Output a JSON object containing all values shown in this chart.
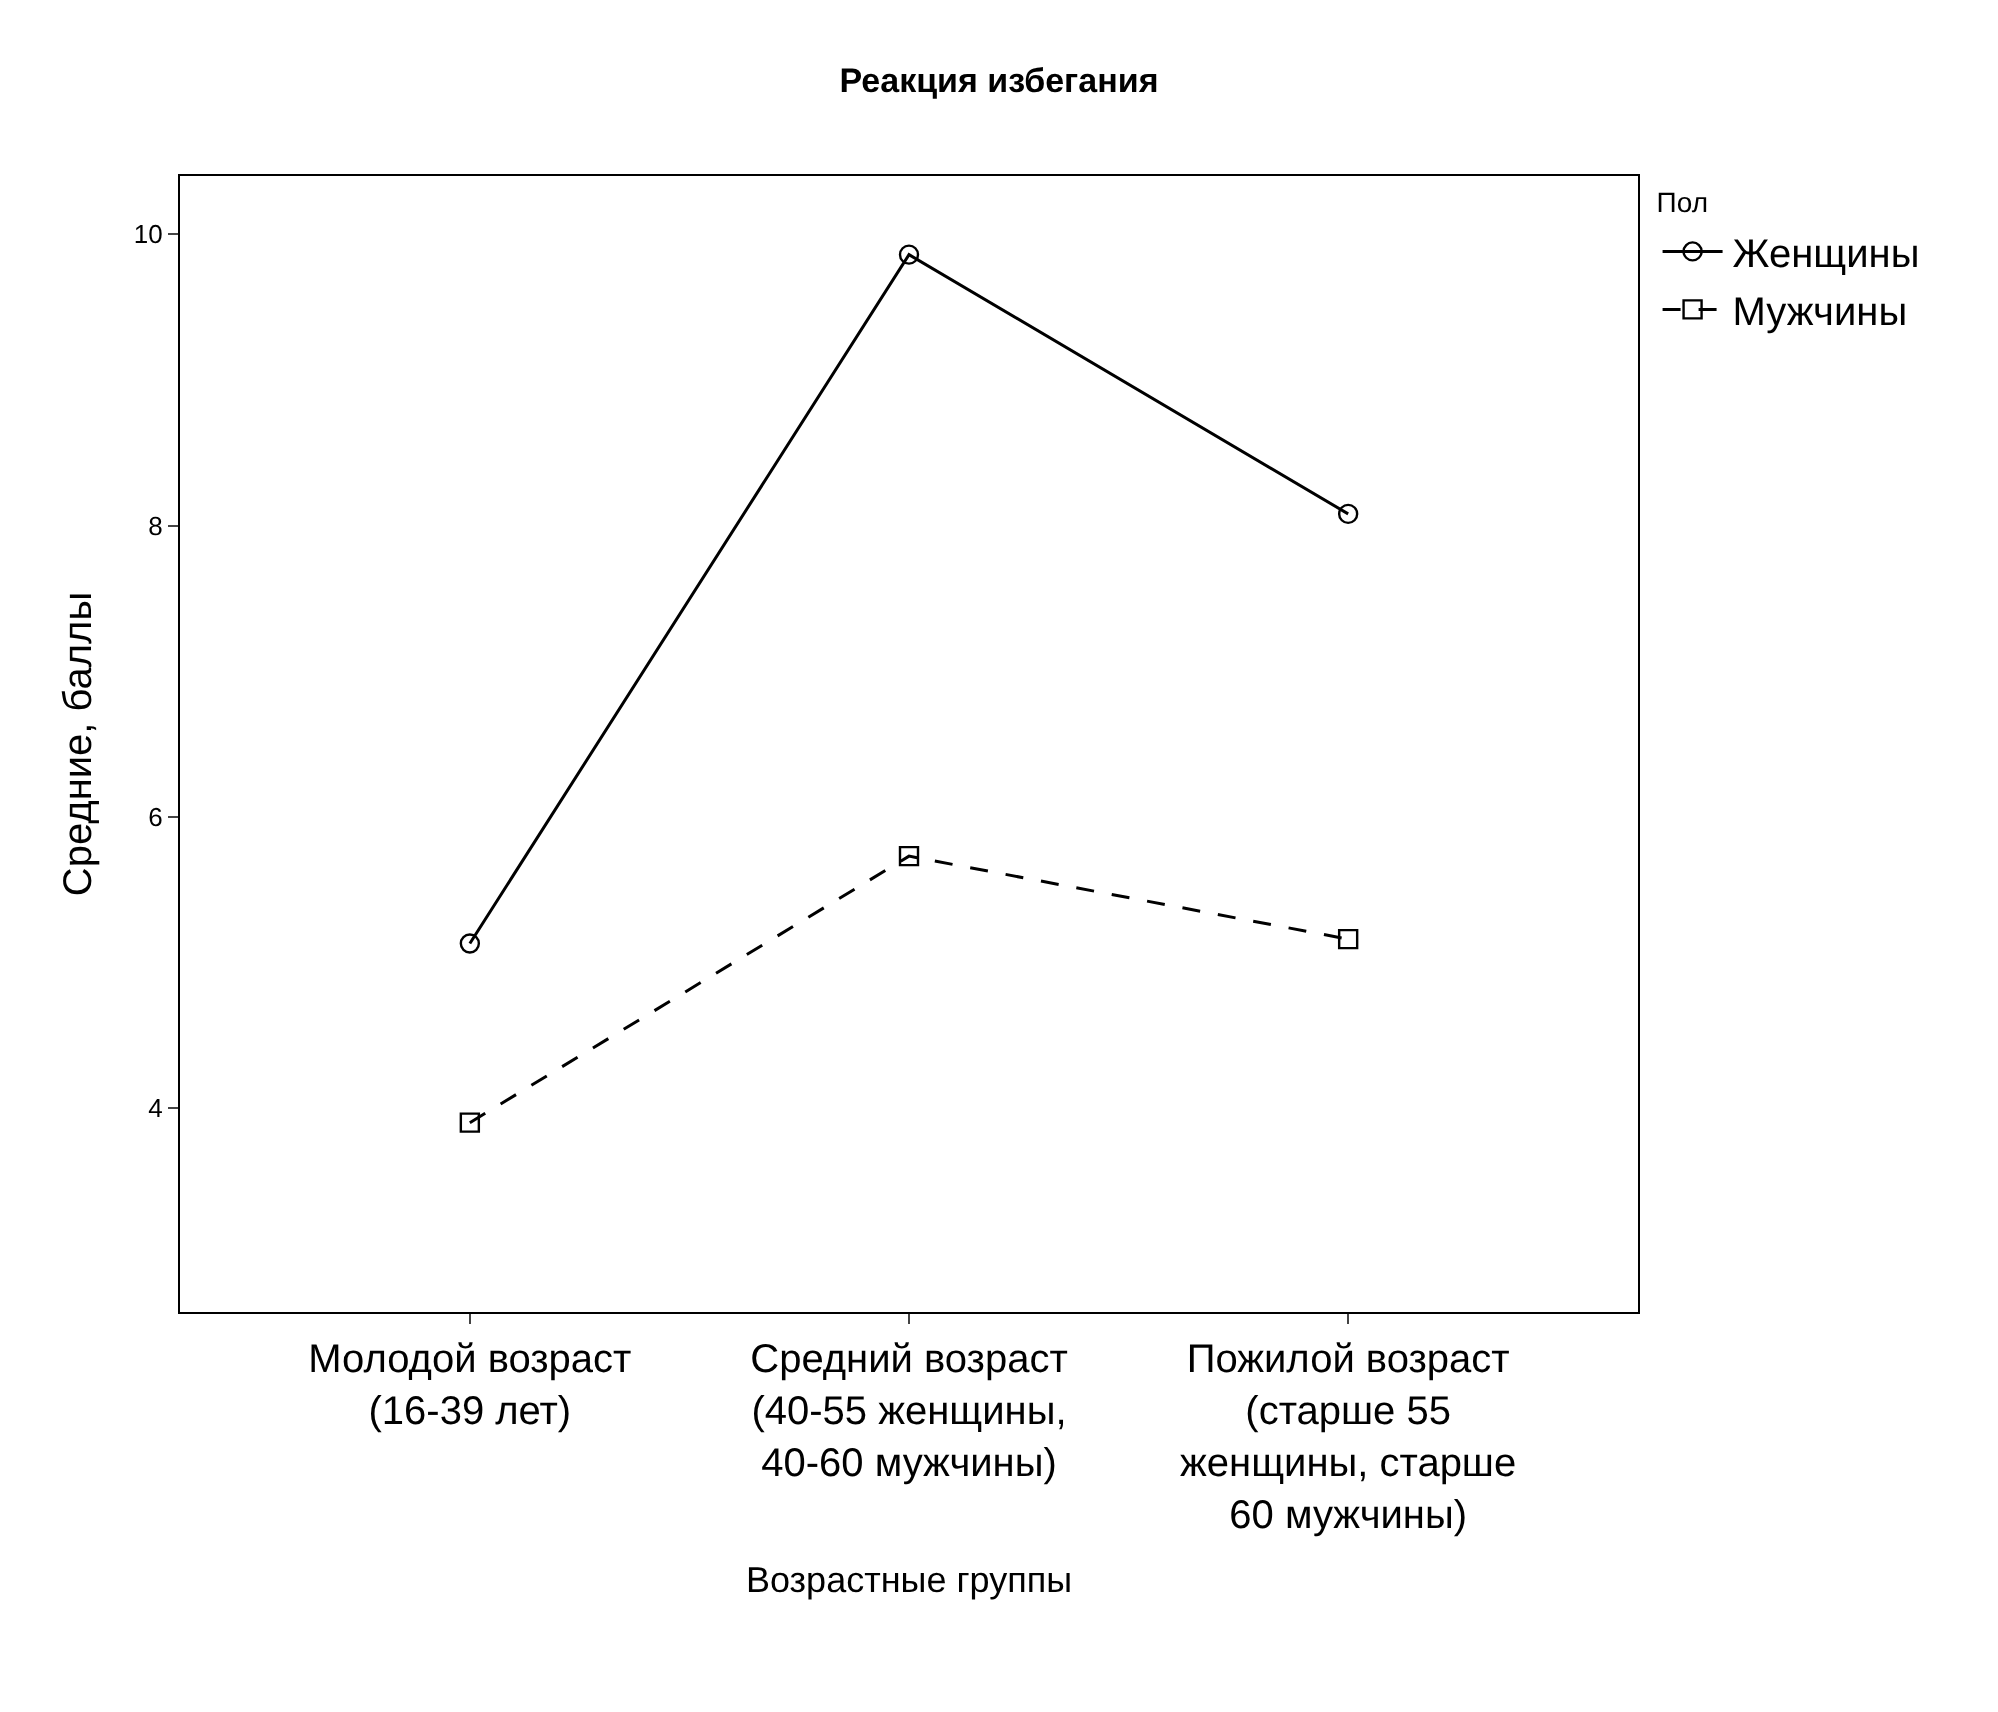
{
  "chart_data": {
    "type": "line",
    "title": "Реакция избегания",
    "xlabel": "Возрастные группы",
    "ylabel": "Средние, баллы",
    "legend_title": "Пол",
    "categories": [
      "Молодой возраст (16-39 лет)",
      "Средний возраст (40-55 женщины, 40-60 мужчины)",
      "Пожилой возраст (старше 55 женщины, старше 60 мужчины)"
    ],
    "series": [
      {
        "name": "Женщины",
        "color": "#000000",
        "values": [
          5.13,
          9.86,
          8.08
        ],
        "marker": "circle",
        "line_style": "solid"
      },
      {
        "name": "Мужчины",
        "color": "#000000",
        "values": [
          3.9,
          5.73,
          5.16
        ],
        "marker": "square",
        "line_style": "dashed"
      }
    ],
    "ylim": [
      2.6,
      10.4
    ],
    "yticks": [
      4,
      6,
      8,
      10
    ],
    "legend": "top right"
  }
}
